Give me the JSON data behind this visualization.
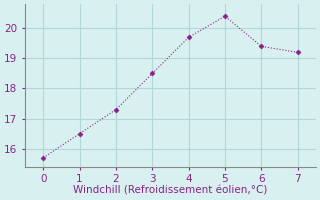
{
  "x": [
    0,
    1,
    2,
    3,
    4,
    5,
    6,
    7
  ],
  "y": [
    15.7,
    16.5,
    17.3,
    18.5,
    19.7,
    20.4,
    19.4,
    19.2
  ],
  "line_color": "#882288",
  "marker": "D",
  "marker_size": 2.5,
  "line_width": 0.8,
  "xlabel": "Windchill (Refroidissement éolien,°C)",
  "xlabel_fontsize": 7.5,
  "xlabel_color": "#882288",
  "background_color": "#d8f0f0",
  "grid_color": "#b0d8d8",
  "tick_color": "#882288",
  "tick_label_color": "#882288",
  "spine_color": "#888888",
  "xlim": [
    -0.5,
    7.5
  ],
  "ylim": [
    15.4,
    20.8
  ],
  "yticks": [
    16,
    17,
    18,
    19,
    20
  ],
  "xticks": [
    0,
    1,
    2,
    3,
    4,
    5,
    6,
    7
  ],
  "tick_fontsize": 7.5
}
